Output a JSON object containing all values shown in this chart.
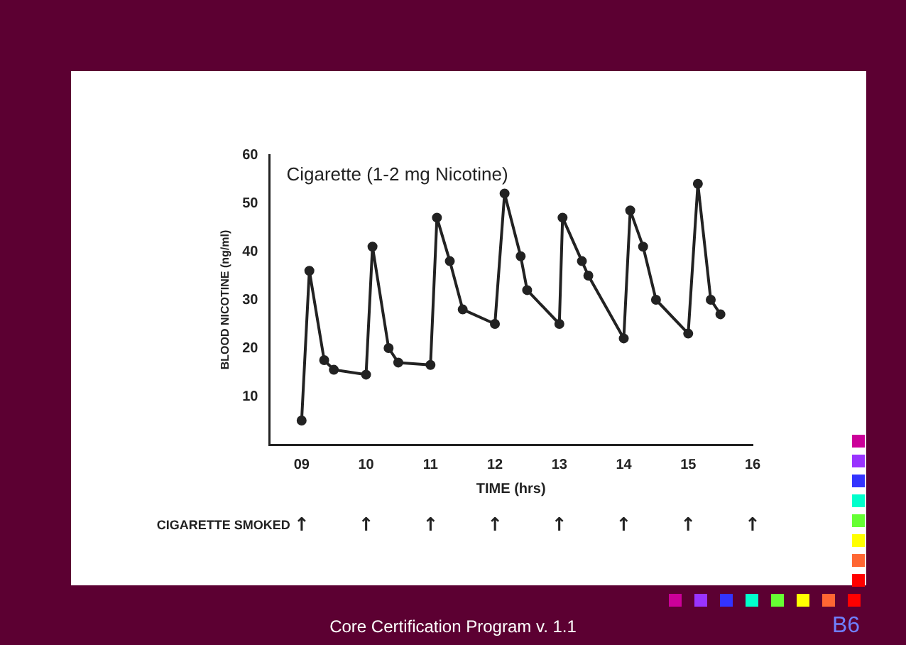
{
  "chart_data": {
    "type": "line",
    "title": "Cigarette (1-2 mg Nicotine)",
    "xlabel": "TIME (hrs)",
    "ylabel": "BLOOD NICOTINE (ng/ml)",
    "x": [
      9,
      9.12,
      9.35,
      9.5,
      10,
      10.1,
      10.35,
      10.5,
      11,
      11.1,
      11.3,
      11.5,
      12,
      12.15,
      12.4,
      12.5,
      13,
      13.05,
      13.35,
      13.45,
      14,
      14.1,
      14.3,
      14.5,
      15,
      15.15,
      15.35,
      15.5
    ],
    "series": [
      {
        "color": "#222222",
        "values": [
          5,
          36,
          17.5,
          15.5,
          14.5,
          41,
          20,
          17,
          16.5,
          47,
          38,
          28,
          25,
          52,
          39,
          32,
          25,
          47,
          38,
          35,
          22,
          48.5,
          41,
          30,
          23,
          54,
          30,
          27
        ]
      }
    ],
    "xlim": [
      8.5,
      16
    ],
    "xticks": [
      {
        "value": 9,
        "label": "09"
      },
      10,
      11,
      12,
      13,
      14,
      15,
      16
    ],
    "ylim": [
      0,
      60
    ],
    "yticks": [
      10,
      20,
      30,
      40,
      50,
      60
    ],
    "grid": false,
    "legend": false,
    "marker": "circle",
    "line_style": "solid",
    "annotations": [
      "CIGARETTE SMOKED",
      "↑",
      "↑",
      "↑",
      "↑",
      "↑",
      "↑",
      "↑",
      "↑",
      "Core Certification Program v. 1.1",
      "B6"
    ]
  }
}
